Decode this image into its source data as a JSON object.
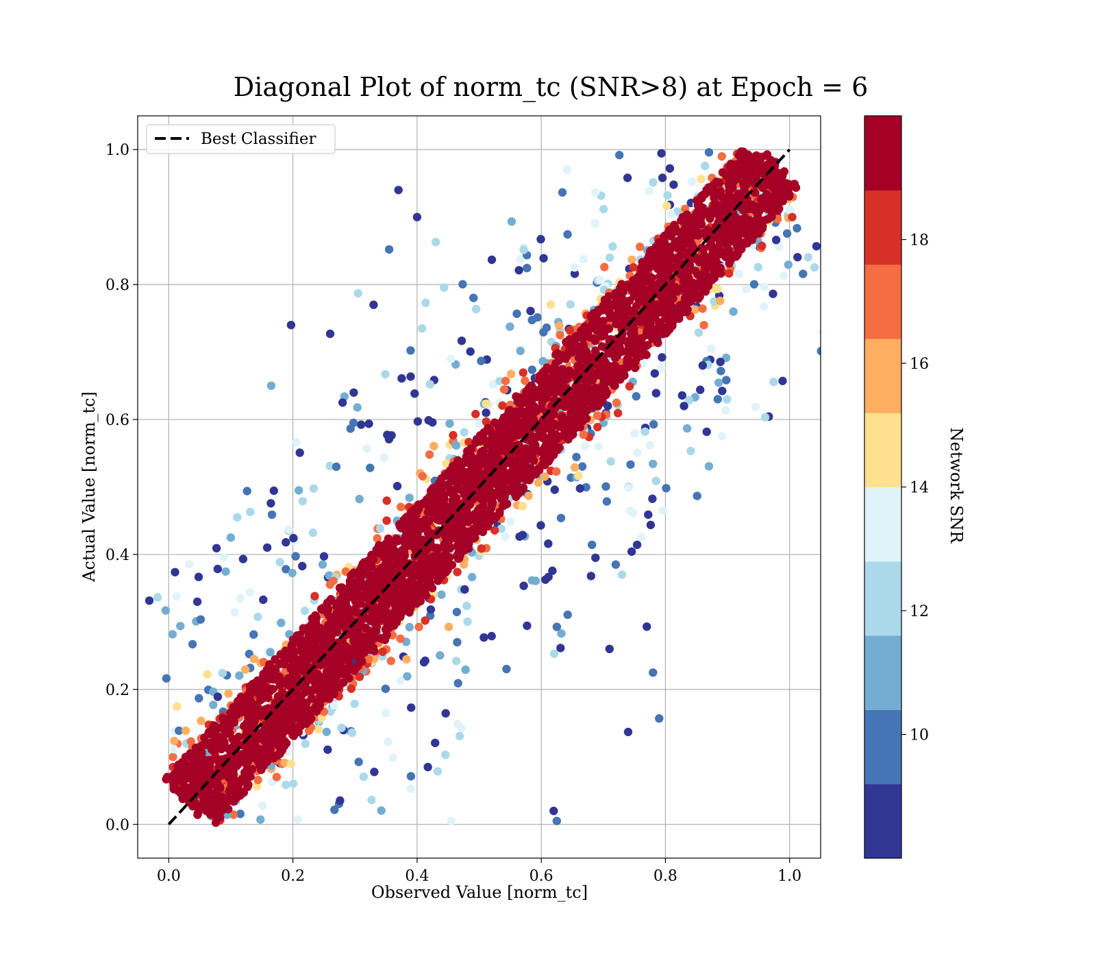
{
  "chart_data": {
    "type": "scatter",
    "title": "Diagonal Plot of norm_tc (SNR>8) at Epoch = 6",
    "xlabel": "Observed Value [norm_tc]",
    "ylabel": "Actual Value [norm_tc]",
    "xlim": [
      -0.05,
      1.05
    ],
    "ylim": [
      -0.05,
      1.05
    ],
    "xticks": [
      "0.0",
      "0.2",
      "0.4",
      "0.6",
      "0.8",
      "1.0"
    ],
    "yticks": [
      "0.0",
      "0.2",
      "0.4",
      "0.6",
      "0.8",
      "1.0"
    ],
    "grid": true,
    "legend": {
      "position": "top-left",
      "entries": [
        "Best Classifier"
      ]
    },
    "reference_line": {
      "name": "Best Classifier",
      "style": "dashed",
      "color": "#000000",
      "x": [
        0.0,
        1.0
      ],
      "y": [
        0.0,
        1.0
      ]
    },
    "colorbar": {
      "label": "Network SNR",
      "range": [
        8,
        20
      ],
      "ticks": [
        "10",
        "12",
        "14",
        "16",
        "18"
      ],
      "colormap": "RdYlBu_r",
      "colors": [
        "#313695",
        "#4575b4",
        "#74add1",
        "#abd9e9",
        "#e0f3f8",
        "#fee090",
        "#fdae61",
        "#f46d43",
        "#d73027",
        "#a50026"
      ]
    },
    "point_groups": [
      {
        "snr": 19.5,
        "color": "#a50026",
        "description": "dense band along diagonal",
        "x_range": [
          0.03,
          0.97
        ],
        "y_offset_range": [
          -0.08,
          0.08
        ]
      },
      {
        "snr": 18,
        "color": "#d73027",
        "x_range": [
          0.04,
          0.97
        ],
        "y_offset_range": [
          -0.1,
          0.1
        ]
      },
      {
        "snr": 16,
        "color": "#fdae61",
        "x_range": [
          0.05,
          0.95
        ],
        "y_offset_range": [
          -0.12,
          0.12
        ]
      },
      {
        "snr": 13,
        "color": "#e0f3f8",
        "x_range": [
          0.08,
          0.95
        ],
        "y_offset_range": [
          -0.2,
          0.2
        ]
      },
      {
        "snr": 10,
        "color": "#4575b4",
        "x_range": [
          0.1,
          0.95
        ],
        "y_offset_range": [
          -0.3,
          0.3
        ]
      },
      {
        "snr": 8.5,
        "color": "#313695",
        "x_range": [
          0.1,
          0.95
        ],
        "y_offset_range": [
          -0.5,
          0.5
        ]
      }
    ],
    "sample_points": [
      {
        "x": 0.37,
        "y": 0.94,
        "snr": 8.5
      },
      {
        "x": 0.4,
        "y": 0.9,
        "snr": 8.5
      },
      {
        "x": 0.197,
        "y": 0.74,
        "snr": 8.5
      },
      {
        "x": 0.165,
        "y": 0.65,
        "snr": 11
      },
      {
        "x": 0.1,
        "y": 0.425,
        "snr": 11
      },
      {
        "x": 0.27,
        "y": 0.53,
        "snr": 10
      },
      {
        "x": 0.28,
        "y": 0.625,
        "snr": 8.5
      },
      {
        "x": 0.26,
        "y": 0.727,
        "snr": 8.5
      },
      {
        "x": 0.33,
        "y": 0.77,
        "snr": 8.5
      },
      {
        "x": 0.305,
        "y": 0.787,
        "snr": 12
      },
      {
        "x": 0.43,
        "y": 0.863,
        "snr": 12
      },
      {
        "x": 0.355,
        "y": 0.852,
        "snr": 10
      },
      {
        "x": 0.79,
        "y": 0.157,
        "snr": 10
      },
      {
        "x": 0.74,
        "y": 0.137,
        "snr": 8.5
      },
      {
        "x": 0.77,
        "y": 0.293,
        "snr": 8.5
      },
      {
        "x": 0.78,
        "y": 0.225,
        "snr": 10
      },
      {
        "x": 0.71,
        "y": 0.26,
        "snr": 8.5
      },
      {
        "x": 0.73,
        "y": 0.37,
        "snr": 12
      },
      {
        "x": 0.72,
        "y": 0.385,
        "snr": 10
      },
      {
        "x": 0.83,
        "y": 0.62,
        "snr": 8.5
      },
      {
        "x": 0.86,
        "y": 0.68,
        "snr": 8.5
      },
      {
        "x": 0.62,
        "y": 0.02,
        "snr": 8.5
      },
      {
        "x": 0.625,
        "y": 0.005,
        "snr": 10
      },
      {
        "x": 0.455,
        "y": 0.005,
        "snr": 13
      }
    ]
  }
}
